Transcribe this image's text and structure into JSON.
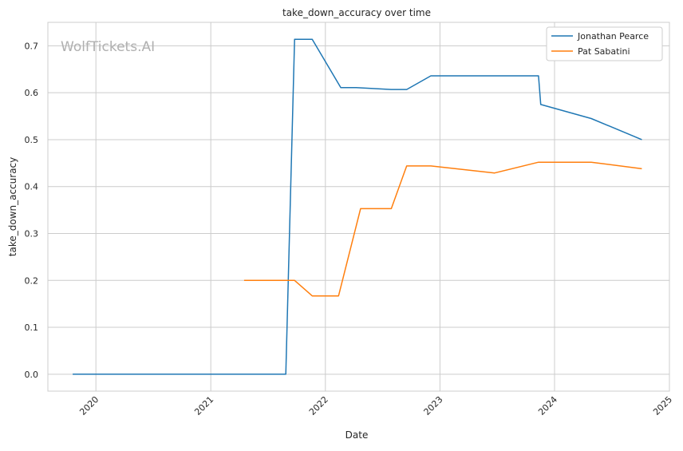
{
  "chart_data": {
    "type": "line",
    "title": "take_down_accuracy over time",
    "xlabel": "Date",
    "ylabel": "take_down_accuracy",
    "watermark": "WolfTickets.AI",
    "grid": true,
    "legend_position": "top-right",
    "x_ticks": [
      "2020",
      "2021",
      "2022",
      "2023",
      "2024",
      "2025"
    ],
    "y_ticks": [
      "0.0",
      "0.1",
      "0.2",
      "0.3",
      "0.4",
      "0.5",
      "0.6",
      "0.7"
    ],
    "xlim": [
      "2019-08-01",
      "2025-01-01"
    ],
    "ylim": [
      -0.036,
      0.75
    ],
    "series": [
      {
        "name": "Jonathan Pearce",
        "color": "#1f77b4",
        "points": [
          {
            "x": "2019-10-19",
            "y": 0.0
          },
          {
            "x": "2021-08-28",
            "y": 0.0
          },
          {
            "x": "2021-09-25",
            "y": 0.714
          },
          {
            "x": "2021-11-20",
            "y": 0.714
          },
          {
            "x": "2022-02-19",
            "y": 0.611
          },
          {
            "x": "2022-04-09",
            "y": 0.611
          },
          {
            "x": "2022-07-30",
            "y": 0.607
          },
          {
            "x": "2022-09-17",
            "y": 0.607
          },
          {
            "x": "2022-12-03",
            "y": 0.636
          },
          {
            "x": "2023-11-11",
            "y": 0.636
          },
          {
            "x": "2023-11-18",
            "y": 0.575
          },
          {
            "x": "2024-04-27",
            "y": 0.545
          },
          {
            "x": "2024-10-05",
            "y": 0.5
          }
        ]
      },
      {
        "name": "Pat Sabatini",
        "color": "#ff7f0e",
        "points": [
          {
            "x": "2021-04-17",
            "y": 0.2
          },
          {
            "x": "2021-09-25",
            "y": 0.2
          },
          {
            "x": "2021-11-20",
            "y": 0.167
          },
          {
            "x": "2022-02-12",
            "y": 0.167
          },
          {
            "x": "2022-04-23",
            "y": 0.353
          },
          {
            "x": "2022-07-30",
            "y": 0.353
          },
          {
            "x": "2022-09-17",
            "y": 0.444
          },
          {
            "x": "2022-12-03",
            "y": 0.444
          },
          {
            "x": "2023-06-24",
            "y": 0.429
          },
          {
            "x": "2023-11-11",
            "y": 0.452
          },
          {
            "x": "2024-04-27",
            "y": 0.452
          },
          {
            "x": "2024-10-05",
            "y": 0.438
          }
        ]
      }
    ]
  }
}
